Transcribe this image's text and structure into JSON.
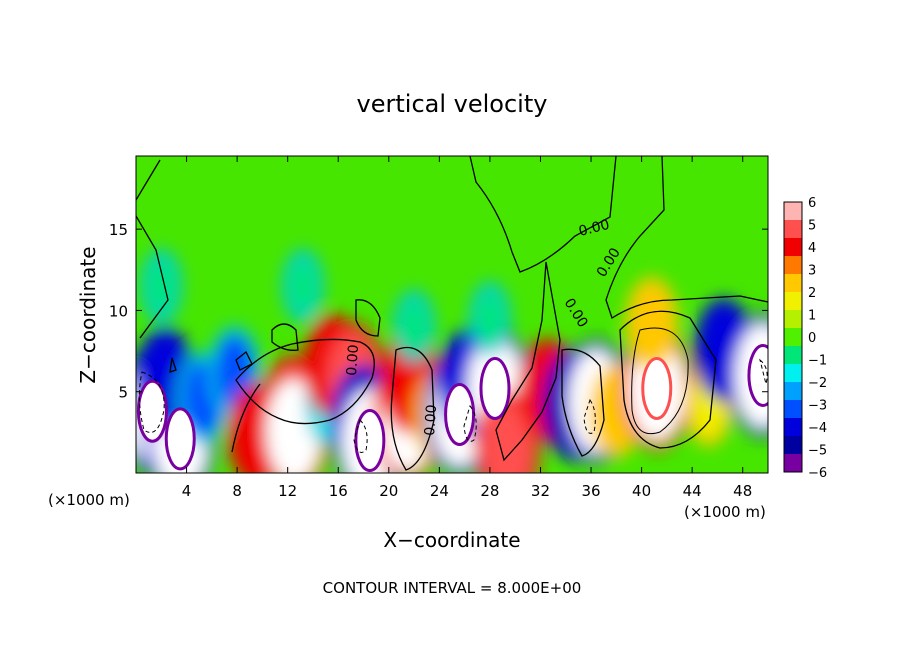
{
  "chart_data": {
    "type": "heatmap",
    "title": "vertical velocity",
    "xlabel": "X−coordinate",
    "ylabel": "Z−coordinate",
    "x_unit_left": "(×1000 m)",
    "x_unit_right": "(×1000 m)",
    "xlim": [
      0,
      50
    ],
    "ylim": [
      0,
      19.5
    ],
    "x_ticks": [
      "4",
      "8",
      "12",
      "16",
      "20",
      "24",
      "28",
      "32",
      "36",
      "40",
      "44",
      "48"
    ],
    "y_ticks": [
      "5",
      "10",
      "15"
    ],
    "colorbar": {
      "ticks": [
        "6",
        "5",
        "4",
        "3",
        "2",
        "1",
        "0",
        "−1",
        "−2",
        "−3",
        "−4",
        "−5",
        "−6"
      ],
      "colors": [
        "#ffb4b4",
        "#ff5050",
        "#f00000",
        "#ff7800",
        "#ffc800",
        "#f0f000",
        "#b4f000",
        "#50f000",
        "#00e678",
        "#00f0f0",
        "#00a0ff",
        "#0050ff",
        "#0000dc",
        "#0000a0",
        "#7800a0"
      ]
    },
    "contour_labels": [
      "0.00",
      "0.00",
      "0.00",
      "0.00",
      "0.00"
    ],
    "footer": "CONTOUR INTERVAL = 8.000E+00",
    "cells": [
      {
        "x": 1.3,
        "z": 3.8,
        "w": -9
      },
      {
        "x": 3.5,
        "z": 2.1,
        "w": -8
      },
      {
        "x": 2.3,
        "z": 5.8,
        "w": -4
      },
      {
        "x": 5.3,
        "z": 4.6,
        "w": -3
      },
      {
        "x": 7.8,
        "z": 6.2,
        "w": -3
      },
      {
        "x": 9.6,
        "z": 2.3,
        "w": 4
      },
      {
        "x": 12.4,
        "z": 3.8,
        "w": 5
      },
      {
        "x": 12.5,
        "z": 2.6,
        "w": 6
      },
      {
        "x": 15.3,
        "z": 4.2,
        "w": -2
      },
      {
        "x": 15.6,
        "z": 6.6,
        "w": 4
      },
      {
        "x": 17.1,
        "z": 5.8,
        "w": 5
      },
      {
        "x": 18.0,
        "z": 3.2,
        "w": -5
      },
      {
        "x": 18.5,
        "z": 2.0,
        "w": -7
      },
      {
        "x": 21.5,
        "z": 3.3,
        "w": 6
      },
      {
        "x": 21.7,
        "z": 5.6,
        "w": 4
      },
      {
        "x": 24.0,
        "z": 3.5,
        "w": 3
      },
      {
        "x": 25.6,
        "z": 3.6,
        "w": -7
      },
      {
        "x": 26.3,
        "z": 5.7,
        "w": -4
      },
      {
        "x": 28.4,
        "z": 5.2,
        "w": -8
      },
      {
        "x": 29.4,
        "z": 1.5,
        "w": 5
      },
      {
        "x": 32.6,
        "z": 5.1,
        "w": 4
      },
      {
        "x": 34.8,
        "z": 4.2,
        "w": -5
      },
      {
        "x": 36.4,
        "z": 4.4,
        "w": -6
      },
      {
        "x": 38.0,
        "z": 3.8,
        "w": 3
      },
      {
        "x": 41.2,
        "z": 5.2,
        "w": 9
      },
      {
        "x": 40.8,
        "z": 9.2,
        "w": 3
      },
      {
        "x": 45.3,
        "z": 4.2,
        "w": 2
      },
      {
        "x": 46.5,
        "z": 7.6,
        "w": -4
      },
      {
        "x": 49.6,
        "z": 6.0,
        "w": -8
      },
      {
        "x": 13.2,
        "z": 11.5,
        "w": -1
      },
      {
        "x": 22.0,
        "z": 9.0,
        "w": -1
      },
      {
        "x": 28.0,
        "z": 9.5,
        "w": -1
      },
      {
        "x": 2.0,
        "z": 11.5,
        "w": -1
      }
    ]
  }
}
